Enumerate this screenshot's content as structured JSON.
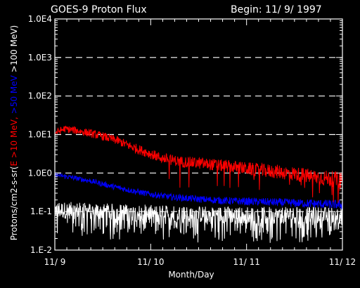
{
  "chart_data": {
    "type": "line",
    "title": "GOES-9 Proton Flux",
    "subtitle": "Begin: 11/ 9/ 1997",
    "xlabel": "Month/Day",
    "ylabel_prefix": "Protons/cm2-s-sr(",
    "ylabel_series": [
      "E >10 MeV,",
      ">50 MeV",
      ">100 MeV"
    ],
    "ylabel_suffix": ")",
    "x_ticks": [
      "11/ 9",
      "11/ 10",
      "11/ 11",
      "11/ 12"
    ],
    "y_ticks": [
      "1.E-2",
      "1.E-1",
      "1.0E0",
      "1.0E1",
      "1.0E2",
      "1.0E3",
      "1.0E4"
    ],
    "y_scale": "log",
    "ylim": [
      0.01,
      10000
    ],
    "xlim_days": [
      0,
      3
    ],
    "grid": "dashed horizontal",
    "colors": {
      "background": "#000000",
      "axes": "#ffffff",
      "e10": "#ff0000",
      "e50": "#0000ff",
      "e100": "#ffffff"
    },
    "series": [
      {
        "key": "e10",
        "color": "#ff0000",
        "x_days": [
          0.0,
          0.1,
          0.2,
          0.35,
          0.5,
          0.65,
          0.8,
          0.95,
          1.1,
          1.3,
          1.5,
          1.7,
          1.9,
          2.1,
          2.3,
          2.5,
          2.7,
          2.9,
          3.0
        ],
        "values": [
          11,
          14,
          13,
          11,
          9,
          7,
          4.8,
          3.5,
          2.5,
          2.0,
          1.8,
          1.6,
          1.4,
          1.2,
          1.1,
          0.95,
          0.8,
          0.7,
          0.65
        ],
        "noise_log": 0.09,
        "noise_growth": 0.12
      },
      {
        "key": "e50",
        "color": "#0000ff",
        "x_days": [
          0.0,
          0.2,
          0.4,
          0.6,
          0.8,
          1.0,
          1.2,
          1.5,
          1.8,
          2.1,
          2.4,
          2.7,
          3.0
        ],
        "values": [
          0.9,
          0.75,
          0.6,
          0.45,
          0.35,
          0.28,
          0.24,
          0.21,
          0.19,
          0.18,
          0.17,
          0.16,
          0.15
        ],
        "noise_log": 0.06,
        "noise_growth": 0.06
      },
      {
        "key": "e100",
        "color": "#ffffff",
        "x_days": [
          0.0,
          0.5,
          1.0,
          1.5,
          2.0,
          2.5,
          3.0
        ],
        "values": [
          0.11,
          0.1,
          0.09,
          0.085,
          0.08,
          0.08,
          0.08
        ],
        "noise_log": 0.22,
        "noise_growth": 0.0
      }
    ]
  }
}
